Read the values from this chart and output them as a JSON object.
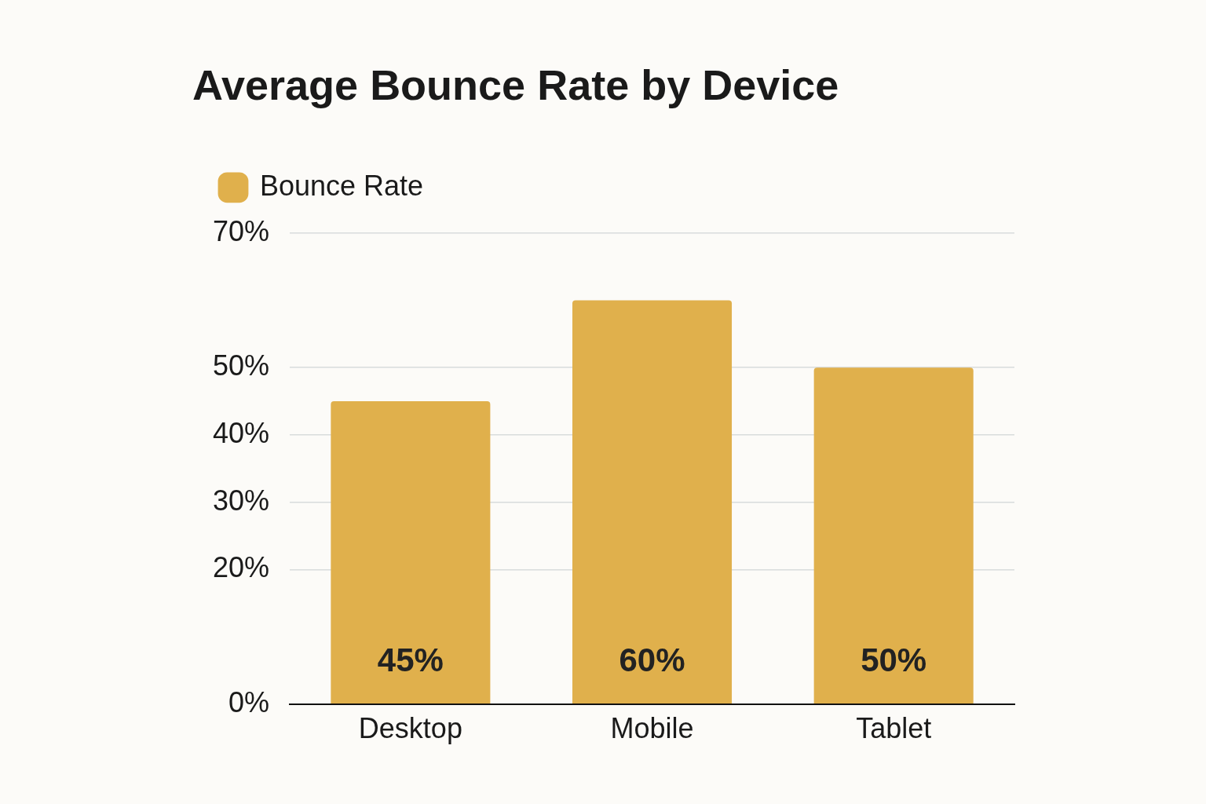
{
  "chart_data": {
    "type": "bar",
    "title": "Average Bounce Rate by Device",
    "categories": [
      "Desktop",
      "Mobile",
      "Tablet"
    ],
    "series": [
      {
        "name": "Bounce Rate",
        "color": "#e0b04c",
        "values": [
          45,
          60,
          50
        ],
        "value_labels": [
          "45%",
          "60%",
          "50%"
        ]
      }
    ],
    "ylim": [
      0,
      70
    ],
    "yticks": [
      {
        "value": 0,
        "label": "0%"
      },
      {
        "value": 20,
        "label": "20%"
      },
      {
        "value": 30,
        "label": "30%"
      },
      {
        "value": 40,
        "label": "40%"
      },
      {
        "value": 50,
        "label": "50%"
      },
      {
        "value": 70,
        "label": "70%"
      }
    ],
    "grid": "y",
    "legend": "top left"
  }
}
